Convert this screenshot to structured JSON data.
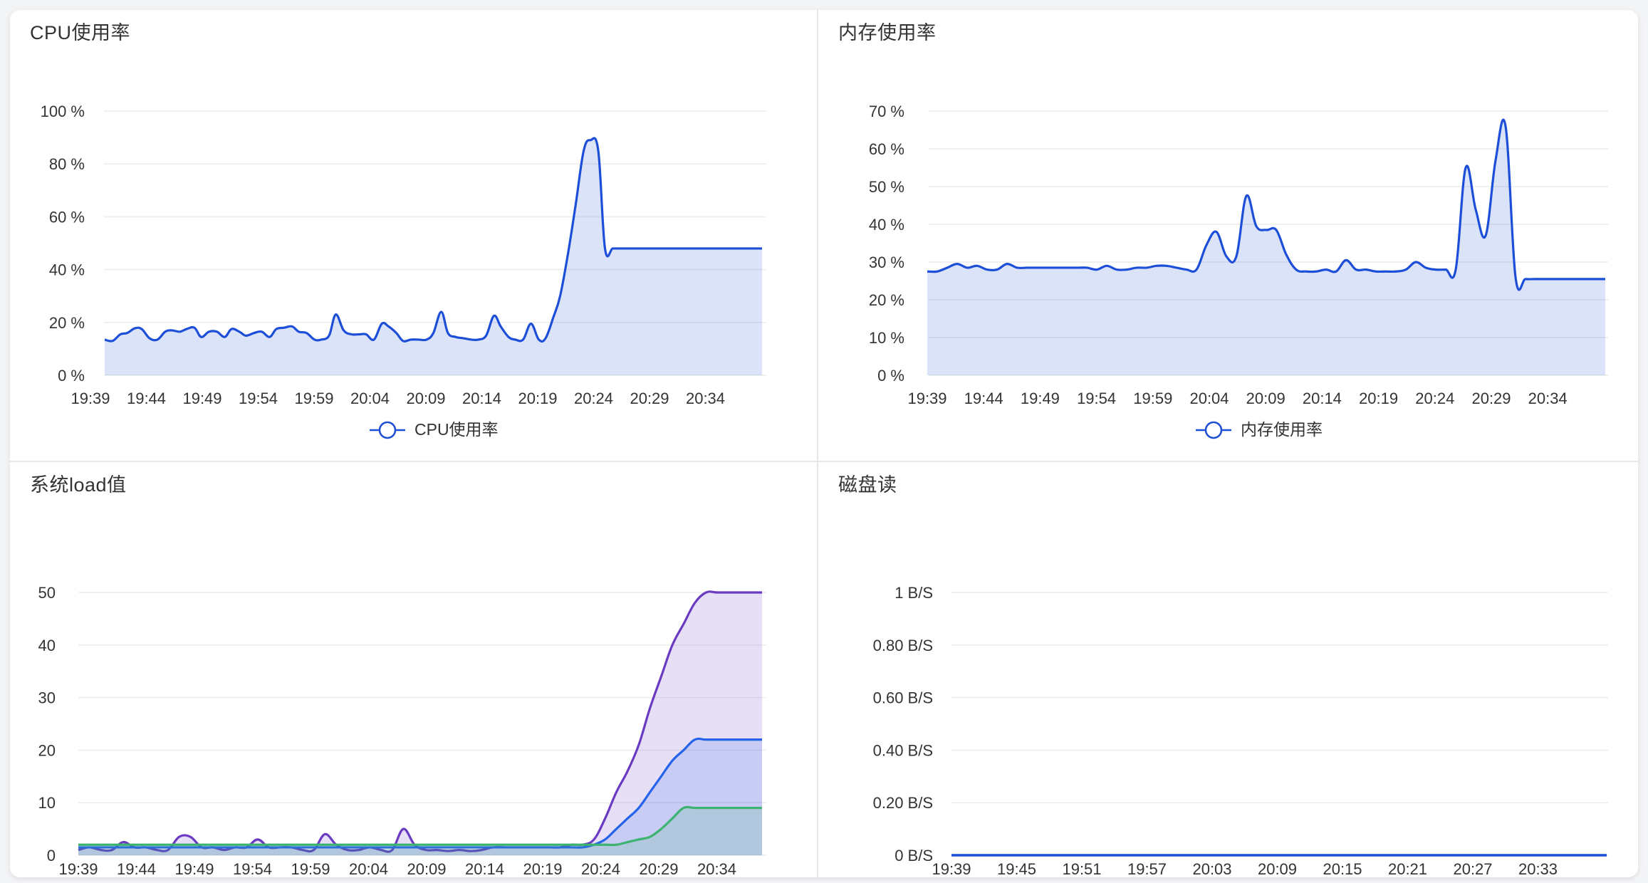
{
  "chart_data": [
    {
      "type": "area",
      "title": "CPU使用率",
      "xlabel": "",
      "ylabel": "",
      "categories": [
        "19:39",
        "19:44",
        "19:49",
        "19:54",
        "19:59",
        "20:04",
        "20:09",
        "20:14",
        "20:19",
        "20:24",
        "20:29",
        "20:34"
      ],
      "ylim": [
        0,
        100
      ],
      "yticks": [
        "0 %",
        "20 %",
        "40 %",
        "60 %",
        "80 %",
        "100 %"
      ],
      "legend": "bottom-center",
      "grid": true,
      "color": "#1d4ed8",
      "series": [
        {
          "name": "CPU使用率",
          "color": "#1d4ed8",
          "x": [
            0,
            0.7,
            1.4,
            2,
            2.7,
            3.3,
            4,
            4.7,
            5.4,
            6,
            6.7,
            7.3,
            8,
            8.6,
            9.3,
            10,
            10.7,
            11.3,
            12,
            12.6,
            13.3,
            14,
            14.7,
            15.3,
            16,
            16.7,
            17.3,
            18,
            18.7,
            19.3,
            20,
            20.6,
            21.3,
            22,
            22.7,
            23.3,
            24,
            24.7,
            25.3,
            26,
            26.6,
            27.3,
            28,
            28.7,
            29.3,
            30,
            30.6,
            31.3,
            32,
            32.7,
            33.3,
            34,
            34.7,
            35.3,
            36,
            36.6,
            37.3,
            38,
            38.7,
            39.3,
            40,
            40.6,
            41.3,
            42,
            42.7,
            43.3,
            44,
            44.6,
            45.3,
            46,
            46.7,
            47.3,
            48,
            48.6,
            49.3,
            50,
            50.7,
            51.3,
            52,
            52.6,
            53.3,
            54,
            54.7,
            55.3,
            56,
            56.6,
            57.3,
            58,
            58.6
          ],
          "values": [
            13.5,
            13,
            15.5,
            16,
            17.8,
            17.5,
            14,
            13.5,
            16.5,
            17,
            16.5,
            17.5,
            18,
            14.5,
            16.5,
            16.5,
            14.5,
            17.5,
            16.5,
            15,
            16,
            16.5,
            14.5,
            17.5,
            18,
            18.5,
            16.5,
            16,
            13.5,
            13.5,
            15,
            23,
            17,
            15.5,
            15.5,
            15.5,
            13.5,
            19.5,
            18.5,
            16,
            13,
            13.5,
            13.5,
            13.5,
            16,
            24,
            16,
            14.5,
            14,
            13.5,
            13.5,
            15,
            22.5,
            18.5,
            14.5,
            13.5,
            13.5,
            19.5,
            13.5,
            14,
            22,
            30,
            46,
            65,
            85,
            89,
            85,
            48,
            48,
            48,
            48,
            48,
            48,
            48,
            48,
            48,
            48,
            48,
            48,
            48,
            48,
            48,
            48,
            48,
            48,
            48,
            48,
            48,
            48
          ]
        }
      ]
    },
    {
      "type": "area",
      "title": "内存使用率",
      "xlabel": "",
      "ylabel": "",
      "categories": [
        "19:39",
        "19:44",
        "19:49",
        "19:54",
        "19:59",
        "20:04",
        "20:09",
        "20:14",
        "20:19",
        "20:24",
        "20:29",
        "20:34"
      ],
      "ylim": [
        0,
        70
      ],
      "yticks": [
        "0 %",
        "10 %",
        "20 %",
        "30 %",
        "40 %",
        "50 %",
        "60 %",
        "70 %"
      ],
      "legend": "bottom-center",
      "grid": true,
      "color": "#1d4ed8",
      "series": [
        {
          "name": "内存使用率",
          "color": "#1d4ed8",
          "x": [
            0,
            1,
            2,
            3,
            4,
            5,
            6,
            7,
            8,
            9,
            10,
            11,
            12,
            13,
            14,
            15,
            16,
            17,
            18,
            19,
            20,
            21,
            22,
            23,
            24,
            25,
            26,
            27,
            28,
            29,
            30,
            31,
            32,
            33,
            34,
            35,
            36,
            37,
            38,
            39,
            40,
            41,
            42,
            43,
            44,
            45,
            46,
            47,
            48,
            49,
            50,
            51,
            52,
            53,
            54,
            55,
            56,
            57,
            58,
            59,
            60,
            61,
            62,
            63,
            64,
            65,
            66,
            67,
            68
          ],
          "values": [
            27.5,
            27.5,
            28.5,
            29.5,
            28.5,
            29,
            28,
            28,
            29.5,
            28.5,
            28.5,
            28.5,
            28.5,
            28.5,
            28.5,
            28.5,
            28.5,
            28,
            29,
            28,
            28,
            28.5,
            28.5,
            29,
            29,
            28.5,
            28,
            28,
            34.5,
            38,
            31.5,
            31.5,
            47.5,
            39.5,
            38.5,
            38.5,
            32,
            28,
            27.5,
            27.5,
            28,
            27.5,
            30.5,
            28,
            28,
            27.5,
            27.5,
            27.5,
            28,
            30,
            28.5,
            28,
            28,
            28,
            55,
            44,
            37,
            57,
            66,
            26,
            25.5,
            25.5,
            25.5,
            25.5,
            25.5,
            25.5,
            25.5,
            25.5,
            25.5
          ]
        }
      ]
    },
    {
      "type": "area",
      "title": "系统load值",
      "xlabel": "",
      "ylabel": "",
      "categories": [
        "19:39",
        "19:44",
        "19:49",
        "19:54",
        "19:59",
        "20:04",
        "20:09",
        "20:14",
        "20:19",
        "20:24",
        "20:29",
        "20:34"
      ],
      "ylim": [
        0,
        50
      ],
      "yticks": [
        "0",
        "10",
        "20",
        "30",
        "40",
        "50"
      ],
      "legend": "none",
      "grid": true,
      "series": [
        {
          "name": "",
          "color": "#6a3bc2",
          "x": [
            0,
            1,
            2,
            3,
            4,
            5,
            6,
            7,
            8,
            9,
            10,
            11,
            12,
            13,
            14,
            15,
            16,
            17,
            18,
            19,
            20,
            21,
            22,
            23,
            24,
            25,
            26,
            27,
            28,
            29,
            30,
            31,
            32,
            33,
            34,
            35,
            36,
            37,
            38,
            39,
            40,
            41,
            42,
            43,
            44,
            45,
            46,
            47,
            48,
            49,
            50,
            51,
            52,
            53,
            54,
            55,
            56,
            57,
            58,
            59,
            60,
            61
          ],
          "values": [
            1,
            1.5,
            1,
            1,
            2.5,
            1.5,
            1.5,
            1,
            1,
            3.5,
            3.5,
            1.5,
            1.5,
            1,
            1.5,
            1.5,
            3,
            1.5,
            1.5,
            1.5,
            1,
            1,
            4,
            2,
            1,
            1,
            1.5,
            1,
            1,
            5,
            2,
            1,
            1,
            0.8,
            1,
            0.8,
            1,
            1.5,
            1.5,
            1.5,
            1.5,
            1.5,
            1.5,
            1.5,
            2,
            2,
            3,
            7,
            12,
            16,
            21,
            28,
            34,
            40,
            44,
            48,
            50,
            50,
            50,
            50,
            50,
            50
          ]
        },
        {
          "name": "",
          "color": "#2563eb",
          "x": [
            0,
            1,
            2,
            3,
            4,
            5,
            6,
            7,
            8,
            9,
            10,
            11,
            12,
            13,
            14,
            15,
            16,
            17,
            18,
            19,
            20,
            21,
            22,
            23,
            24,
            25,
            26,
            27,
            28,
            29,
            30,
            31,
            32,
            33,
            34,
            35,
            36,
            37,
            38,
            39,
            40,
            41,
            42,
            43,
            44,
            45,
            46,
            47,
            48,
            49,
            50,
            51,
            52,
            53,
            54,
            55,
            56,
            57,
            58,
            59,
            60,
            61
          ],
          "values": [
            1.5,
            1.5,
            1.5,
            1.5,
            1.5,
            1.5,
            1.5,
            1.5,
            1.5,
            1.5,
            1.5,
            1.5,
            1.5,
            1.5,
            1.5,
            1.5,
            1.5,
            1.5,
            1.5,
            1.5,
            1.5,
            1.5,
            1.5,
            1.5,
            1.5,
            1.5,
            1.5,
            1.5,
            1.5,
            1.5,
            1.5,
            1.5,
            1.5,
            1.5,
            1.5,
            1.5,
            1.5,
            1.5,
            1.5,
            1.5,
            1.5,
            1.5,
            1.5,
            1.5,
            1.5,
            1.5,
            2,
            3,
            5,
            7,
            9,
            12,
            15,
            18,
            20,
            22,
            22,
            22,
            22,
            22,
            22,
            22
          ]
        },
        {
          "name": "",
          "color": "#3cb371",
          "x": [
            0,
            1,
            2,
            3,
            4,
            5,
            6,
            7,
            8,
            9,
            10,
            11,
            12,
            13,
            14,
            15,
            16,
            17,
            18,
            19,
            20,
            21,
            22,
            23,
            24,
            25,
            26,
            27,
            28,
            29,
            30,
            31,
            32,
            33,
            34,
            35,
            36,
            37,
            38,
            39,
            40,
            41,
            42,
            43,
            44,
            45,
            46,
            47,
            48,
            49,
            50,
            51,
            52,
            53,
            54,
            55,
            56,
            57,
            58,
            59,
            60,
            61
          ],
          "values": [
            2,
            2,
            2,
            2,
            2,
            2,
            2,
            2,
            2,
            2,
            2,
            2,
            2,
            2,
            2,
            2,
            2,
            2,
            2,
            2,
            2,
            2,
            2,
            2,
            2,
            2,
            2,
            2,
            2,
            2,
            2,
            2,
            2,
            2,
            2,
            2,
            2,
            2,
            2,
            2,
            2,
            2,
            2,
            2,
            2,
            2,
            2,
            2,
            2,
            2.5,
            3,
            3.5,
            5,
            7,
            9,
            9,
            9,
            9,
            9,
            9,
            9,
            9
          ]
        }
      ]
    },
    {
      "type": "line",
      "title": "磁盘读",
      "xlabel": "",
      "ylabel": "",
      "categories": [
        "19:39",
        "19:45",
        "19:51",
        "19:57",
        "20:03",
        "20:09",
        "20:15",
        "20:21",
        "20:27",
        "20:33"
      ],
      "ylim": [
        0,
        1
      ],
      "yticks": [
        "0 B/S",
        "0.20 B/S",
        "0.40 B/S",
        "0.60 B/S",
        "0.80 B/S",
        "1 B/S"
      ],
      "legend": "none",
      "grid": true,
      "series": [
        {
          "name": "",
          "color": "#1d4ed8",
          "x": [
            0,
            10
          ],
          "values": [
            0,
            0
          ]
        }
      ]
    }
  ]
}
